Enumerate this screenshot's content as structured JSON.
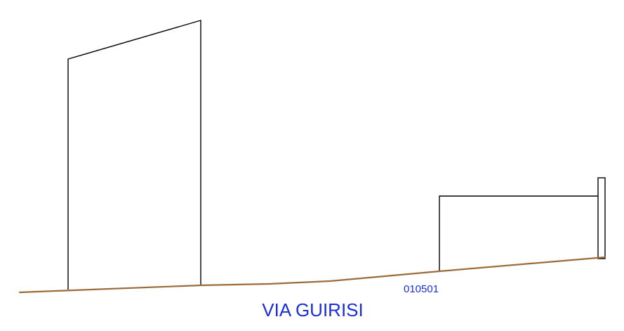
{
  "drawing": {
    "code_label": "010501",
    "street_name": "VIA GUIRISI"
  },
  "colors": {
    "outline": "#000000",
    "ground": "#9c6b3a",
    "label": "#1a2fd6"
  }
}
